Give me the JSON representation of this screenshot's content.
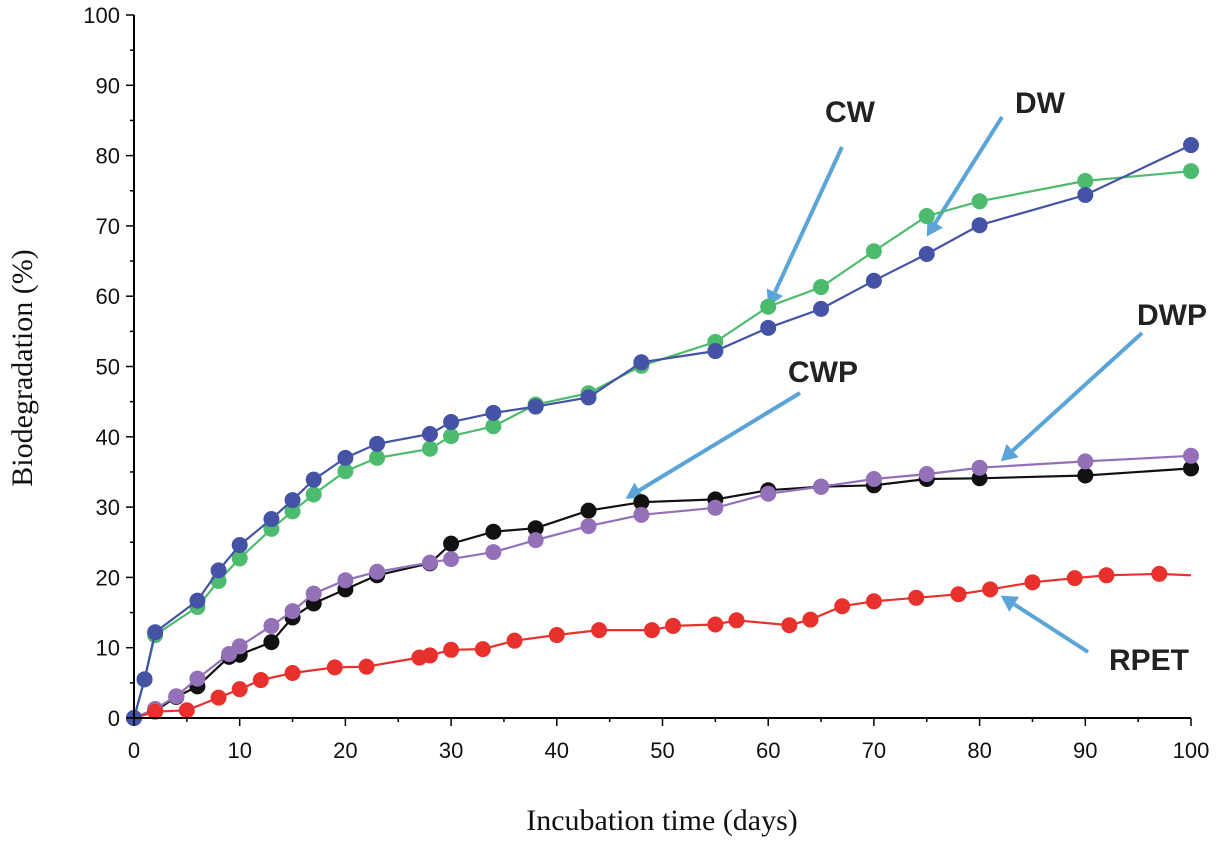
{
  "chart_data": {
    "type": "line",
    "title": "",
    "xlabel": "Incubation time (days)",
    "ylabel": "Biodegradation (%)",
    "xlim": [
      0,
      100
    ],
    "ylim": [
      0,
      100
    ],
    "xticks": [
      "0",
      "10",
      "20",
      "30",
      "40",
      "50",
      "60",
      "70",
      "80",
      "90",
      "100"
    ],
    "yticks": [
      "0",
      "10",
      "20",
      "30",
      "40",
      "50",
      "60",
      "70",
      "80",
      "90",
      "100"
    ],
    "grid": false,
    "series": [
      {
        "name": "DW",
        "color": "#4453a6",
        "x": [
          0,
          1,
          2,
          6,
          8,
          10,
          13,
          15,
          17,
          20,
          23,
          28,
          30,
          34,
          38,
          43,
          48,
          55,
          60,
          65,
          70,
          75,
          80,
          90,
          100
        ],
        "y": [
          0,
          5.5,
          12.2,
          16.7,
          21,
          24.6,
          28.3,
          31,
          33.9,
          37,
          39,
          40.4,
          42.1,
          43.4,
          44.3,
          45.6,
          50.6,
          52.2,
          55.5,
          58.2,
          62.2,
          66,
          70.1,
          74.4,
          81.5
        ]
      },
      {
        "name": "CW",
        "color": "#4dbb6d",
        "x": [
          0,
          1,
          2,
          6,
          8,
          10,
          13,
          15,
          17,
          20,
          23,
          28,
          30,
          34,
          38,
          43,
          48,
          55,
          60,
          65,
          70,
          75,
          80,
          90,
          100
        ],
        "y": [
          0,
          5.5,
          11.8,
          15.8,
          19.5,
          22.7,
          26.9,
          29.4,
          31.8,
          35.1,
          37,
          38.3,
          40.1,
          41.5,
          44.6,
          46.2,
          50.1,
          53.5,
          58.5,
          61.3,
          66.4,
          71.4,
          73.5,
          76.4,
          77.8
        ]
      },
      {
        "name": "CWP",
        "color": "#111111",
        "x": [
          0,
          2,
          4,
          6,
          9,
          10,
          13,
          15,
          17,
          20,
          23,
          28,
          30,
          34,
          38,
          43,
          48,
          55,
          60,
          65,
          70,
          75,
          80,
          90,
          100
        ],
        "y": [
          0,
          1,
          3,
          4.5,
          8.7,
          9,
          10.8,
          14.3,
          16.3,
          18.3,
          20.3,
          22,
          24.8,
          26.5,
          27,
          29.5,
          30.7,
          31.1,
          32.4,
          32.9,
          33.1,
          34,
          34.1,
          34.5,
          35.5
        ]
      },
      {
        "name": "DWP",
        "color": "#9470b8",
        "x": [
          0,
          2,
          4,
          6,
          9,
          10,
          13,
          15,
          17,
          20,
          23,
          28,
          30,
          34,
          38,
          43,
          48,
          55,
          60,
          65,
          70,
          75,
          80,
          90,
          100
        ],
        "y": [
          0,
          1.3,
          3.1,
          5.6,
          9.1,
          10.2,
          13.1,
          15.2,
          17.7,
          19.6,
          20.8,
          22.1,
          22.6,
          23.6,
          25.3,
          27.3,
          28.9,
          29.9,
          31.9,
          32.9,
          34,
          34.7,
          35.6,
          36.5,
          37.3
        ]
      },
      {
        "name": "RPET",
        "color": "#e8302c",
        "x": [
          0,
          2,
          5,
          8,
          10,
          12,
          15,
          19,
          22,
          27,
          28,
          30,
          33,
          36,
          40,
          44,
          49,
          51,
          55,
          57,
          62,
          64,
          67,
          70,
          74,
          78,
          81,
          85,
          89,
          92,
          97,
          100
        ],
        "y": [
          0,
          0.9,
          1.1,
          2.9,
          4.1,
          5.4,
          6.4,
          7.2,
          7.3,
          8.6,
          8.9,
          9.7,
          9.8,
          11,
          11.8,
          12.5,
          12.5,
          13.1,
          13.3,
          13.9,
          13.2,
          14,
          15.9,
          16.6,
          17.1,
          17.6,
          18.3,
          19.3,
          19.9,
          20.3,
          20.5,
          20.3
        ],
        "markers_skip_last": true
      }
    ],
    "annotations": [
      {
        "label": "CW",
        "series": "CW",
        "target_x": 60,
        "target_y": 58.5
      },
      {
        "label": "DW",
        "series": "DW",
        "target_x": 75,
        "target_y": 68.5
      },
      {
        "label": "CWP",
        "series": "CWP",
        "target_x": 46.5,
        "target_y": 31.2
      },
      {
        "label": "DWP",
        "series": "DWP",
        "target_x": 82,
        "target_y": 36.5
      },
      {
        "label": "RPET",
        "series": "RPET",
        "target_x": 82,
        "target_y": 17.4
      }
    ],
    "arrow_color": "#5aa4d8"
  }
}
